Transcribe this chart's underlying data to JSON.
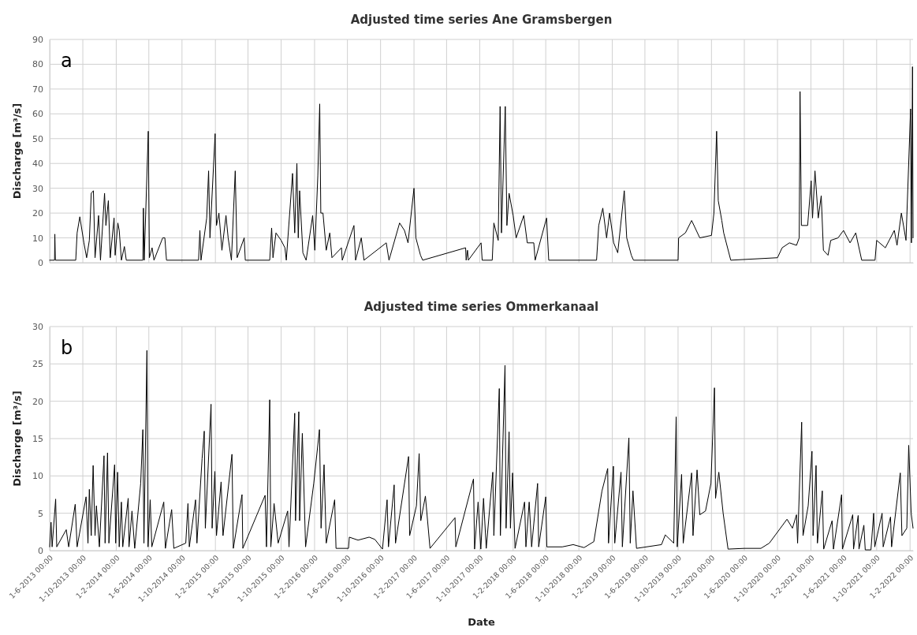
{
  "chart_data": [
    {
      "type": "line",
      "title": "Adjusted time series Ane Gramsbergen",
      "ylabel": "Discharge [m³/s]",
      "annotations": [
        "a"
      ],
      "grid": true,
      "tick_labels": "y",
      "xlim": [
        "2013-06-01",
        "2022-02-12"
      ],
      "ylim": [
        0,
        90
      ],
      "yticks": [
        0,
        10,
        20,
        30,
        40,
        50,
        60,
        70,
        80,
        90
      ],
      "xticks": [
        {
          "value": "2013-06-01",
          "label": null
        },
        {
          "value": "2013-10-01",
          "label": null
        },
        {
          "value": "2014-02-01",
          "label": null
        },
        {
          "value": "2014-06-01",
          "label": null
        },
        {
          "value": "2014-10-01",
          "label": null
        },
        {
          "value": "2015-02-01",
          "label": null
        },
        {
          "value": "2015-06-01",
          "label": null
        },
        {
          "value": "2015-10-01",
          "label": null
        },
        {
          "value": "2016-02-01",
          "label": null
        },
        {
          "value": "2016-06-01",
          "label": null
        },
        {
          "value": "2016-10-01",
          "label": null
        },
        {
          "value": "2017-02-01",
          "label": null
        },
        {
          "value": "2017-06-01",
          "label": null
        },
        {
          "value": "2017-10-01",
          "label": null
        },
        {
          "value": "2018-02-01",
          "label": null
        },
        {
          "value": "2018-06-01",
          "label": null
        },
        {
          "value": "2018-10-01",
          "label": null
        },
        {
          "value": "2019-02-01",
          "label": null
        },
        {
          "value": "2019-06-01",
          "label": null
        },
        {
          "value": "2019-10-01",
          "label": null
        },
        {
          "value": "2020-02-01",
          "label": null
        },
        {
          "value": "2020-06-01",
          "label": null
        },
        {
          "value": "2020-10-01",
          "label": null
        },
        {
          "value": "2021-02-01",
          "label": null
        },
        {
          "value": "2021-06-01",
          "label": null
        },
        {
          "value": "2021-10-01",
          "label": null
        },
        {
          "value": "2022-02-01",
          "label": null
        }
      ],
      "series": [
        {
          "color": "#000000",
          "x": [
            "2013-06-01",
            "2013-06-19",
            "2013-06-20",
            "2013-06-22",
            "2013-09-05",
            "2013-09-10",
            "2013-09-20",
            "2013-10-05",
            "2013-10-15",
            "2013-10-25",
            "2013-11-01",
            "2013-11-09",
            "2013-11-15",
            "2013-11-28",
            "2013-12-05",
            "2013-12-20",
            "2013-12-25",
            "2014-01-03",
            "2014-01-10",
            "2014-01-24",
            "2014-01-28",
            "2014-02-07",
            "2014-02-12",
            "2014-02-20",
            "2014-03-03",
            "2014-03-10",
            "2014-05-10",
            "2014-05-12",
            "2014-05-15",
            "2014-05-30",
            "2014-06-03",
            "2014-06-13",
            "2014-06-20",
            "2014-07-22",
            "2014-07-30",
            "2014-08-05",
            "2014-12-01",
            "2014-12-06",
            "2014-12-10",
            "2014-12-31",
            "2015-01-07",
            "2015-01-12",
            "2015-01-31",
            "2015-02-05",
            "2015-02-14",
            "2015-02-25",
            "2015-03-12",
            "2015-03-20",
            "2015-04-01",
            "2015-04-15",
            "2015-04-22",
            "2015-05-18",
            "2015-05-22",
            "2015-08-20",
            "2015-08-27",
            "2015-09-01",
            "2015-09-12",
            "2015-10-01",
            "2015-10-15",
            "2015-10-20",
            "2015-11-12",
            "2015-11-20",
            "2015-11-28",
            "2015-12-03",
            "2015-12-08",
            "2015-12-20",
            "2016-01-01",
            "2016-01-25",
            "2016-02-02",
            "2016-02-13",
            "2016-02-20",
            "2016-02-24",
            "2016-03-03",
            "2016-03-15",
            "2016-03-28",
            "2016-04-05",
            "2016-05-10",
            "2016-05-13",
            "2016-06-25",
            "2016-07-01",
            "2016-07-22",
            "2016-08-01",
            "2016-10-22",
            "2016-11-01",
            "2016-12-10",
            "2016-12-28",
            "2017-01-10",
            "2017-02-01",
            "2017-02-08",
            "2017-02-25",
            "2017-03-05",
            "2017-08-10",
            "2017-08-12",
            "2017-08-17",
            "2017-08-20",
            "2017-10-06",
            "2017-10-10",
            "2017-11-16",
            "2017-11-22",
            "2017-12-08",
            "2017-12-15",
            "2017-12-20",
            "2018-01-03",
            "2018-01-09",
            "2018-01-17",
            "2018-02-01",
            "2018-02-12",
            "2018-03-12",
            "2018-03-25",
            "2018-04-18",
            "2018-04-23",
            "2018-06-04",
            "2018-06-12",
            "2018-12-05",
            "2018-12-13",
            "2018-12-28",
            "2019-01-11",
            "2019-01-22",
            "2019-02-06",
            "2019-02-21",
            "2019-03-17",
            "2019-03-26",
            "2019-04-12",
            "2019-04-20",
            "2019-10-01",
            "2019-10-03",
            "2019-10-28",
            "2019-11-20",
            "2019-12-20",
            "2020-02-01",
            "2020-02-10",
            "2020-02-20",
            "2020-02-26",
            "2020-03-10",
            "2020-03-17",
            "2020-04-12",
            "2020-10-01",
            "2020-10-18",
            "2020-11-14",
            "2020-12-10",
            "2020-12-20",
            "2020-12-23",
            "2020-12-28",
            "2021-01-20",
            "2021-02-02",
            "2021-02-07",
            "2021-02-16",
            "2021-02-28",
            "2021-03-11",
            "2021-03-19",
            "2021-04-05",
            "2021-04-15",
            "2021-05-12",
            "2021-06-01",
            "2021-06-25",
            "2021-07-16",
            "2021-08-07",
            "2021-09-25",
            "2021-10-01",
            "2021-11-02",
            "2021-12-05",
            "2021-12-15",
            "2021-12-31",
            "2022-01-17",
            "2022-02-03",
            "2022-02-06",
            "2022-02-10",
            "2022-02-12"
          ],
          "values": [
            1,
            1,
            11.5,
            1,
            1,
            12,
            18.5,
            8,
            2,
            9,
            28,
            29,
            2,
            19,
            1,
            28,
            15,
            25,
            2,
            18,
            3,
            16,
            13,
            1,
            6.5,
            1,
            1,
            22,
            1,
            53,
            2,
            6,
            1,
            10,
            10,
            1,
            1,
            13,
            1,
            18,
            37,
            10,
            52,
            15,
            20,
            5,
            19,
            10,
            1,
            37,
            2,
            10,
            1,
            1,
            14,
            2,
            12,
            9,
            6,
            1,
            36,
            12,
            40,
            10,
            29,
            4,
            1,
            19,
            5,
            35,
            64,
            20,
            20,
            5,
            12,
            2,
            6,
            1,
            15,
            1,
            10,
            1,
            8,
            1,
            16,
            13,
            8,
            30,
            10,
            3,
            1,
            6,
            1,
            5,
            1,
            8,
            1,
            1,
            16,
            9,
            63,
            12,
            63,
            15,
            28,
            19,
            10,
            19,
            8,
            8,
            1,
            18,
            1,
            1,
            15,
            22,
            10,
            20,
            8,
            4,
            29,
            10,
            3,
            1,
            1,
            10,
            12,
            17,
            10,
            11,
            20,
            53,
            25,
            17,
            12,
            1,
            2,
            6,
            8,
            7,
            10,
            69,
            15,
            15,
            33,
            18,
            37,
            18,
            27,
            5,
            3,
            9,
            10,
            13,
            8,
            12,
            1,
            1,
            9,
            6,
            13,
            7,
            20,
            9,
            62,
            8,
            79,
            10
          ]
        }
      ]
    },
    {
      "type": "line",
      "title": "Adjusted time series Ommerkanaal",
      "xlabel": "Date",
      "ylabel": "Discharge [m³/s]",
      "annotations": [
        "b"
      ],
      "grid": true,
      "xlim": [
        "2013-06-01",
        "2022-02-12"
      ],
      "ylim": [
        0,
        30
      ],
      "yticks": [
        0,
        5,
        10,
        15,
        20,
        25,
        30
      ],
      "xticks": [
        {
          "value": "2013-06-01",
          "label": "1-6-2013 00:00"
        },
        {
          "value": "2013-10-01",
          "label": "1-10-2013 00:00"
        },
        {
          "value": "2014-02-01",
          "label": "1-2-2014 00:00"
        },
        {
          "value": "2014-06-01",
          "label": "1-6-2014 00:00"
        },
        {
          "value": "2014-10-01",
          "label": "1-10-2014 00:00"
        },
        {
          "value": "2015-02-01",
          "label": "1-2-2015 00:00"
        },
        {
          "value": "2015-06-01",
          "label": "1-6-2015 00:00"
        },
        {
          "value": "2015-10-01",
          "label": "1-10-2015 00:00"
        },
        {
          "value": "2016-02-01",
          "label": "1-2-2016 00:00"
        },
        {
          "value": "2016-06-01",
          "label": "1-6-2016 00:00"
        },
        {
          "value": "2016-10-01",
          "label": "1-10-2016 00:00"
        },
        {
          "value": "2017-02-01",
          "label": "1-2-2017 00:00"
        },
        {
          "value": "2017-06-01",
          "label": "1-6-2017 00:00"
        },
        {
          "value": "2017-10-01",
          "label": "1-10-2017 00:00"
        },
        {
          "value": "2018-02-01",
          "label": "1-2-2018 00:00"
        },
        {
          "value": "2018-06-01",
          "label": "1-6-2018 00:00"
        },
        {
          "value": "2018-10-01",
          "label": "1-10-2018 00:00"
        },
        {
          "value": "2019-02-01",
          "label": "1-2-2019 00:00"
        },
        {
          "value": "2019-06-01",
          "label": "1-6-2019 00:00"
        },
        {
          "value": "2019-10-01",
          "label": "1-10-2019 00:00"
        },
        {
          "value": "2020-02-01",
          "label": "1-2-2020 00:00"
        },
        {
          "value": "2020-06-01",
          "label": "1-6-2020 00:00"
        },
        {
          "value": "2020-10-01",
          "label": "1-10-2020 00:00"
        },
        {
          "value": "2021-02-01",
          "label": "1-2-2021 00:00"
        },
        {
          "value": "2021-06-01",
          "label": "1-6-2021 00:00"
        },
        {
          "value": "2021-10-01",
          "label": "1-10-2021 00:00"
        },
        {
          "value": "2022-02-01",
          "label": "1-2-2022 00:00"
        }
      ],
      "series": [
        {
          "color": "#000000",
          "x": [
            "2013-06-01",
            "2013-06-06",
            "2013-06-10",
            "2013-06-23",
            "2013-06-27",
            "2013-08-01",
            "2013-08-10",
            "2013-09-03",
            "2013-09-10",
            "2013-10-13",
            "2013-10-20",
            "2013-10-25",
            "2013-11-01",
            "2013-11-08",
            "2013-11-15",
            "2013-11-20",
            "2013-12-01",
            "2013-12-18",
            "2013-12-22",
            "2013-12-31",
            "2014-01-05",
            "2014-01-26",
            "2014-01-30",
            "2014-02-06",
            "2014-02-12",
            "2014-02-20",
            "2014-02-25",
            "2014-03-17",
            "2014-03-20",
            "2014-03-31",
            "2014-04-10",
            "2014-05-02",
            "2014-05-10",
            "2014-05-14",
            "2014-05-25",
            "2014-05-29",
            "2014-06-06",
            "2014-06-12",
            "2014-07-26",
            "2014-08-01",
            "2014-08-24",
            "2014-09-01",
            "2014-10-15",
            "2014-10-23",
            "2014-10-28",
            "2014-11-20",
            "2014-11-25",
            "2014-12-14",
            "2014-12-22",
            "2014-12-26",
            "2015-01-16",
            "2015-01-20",
            "2015-01-30",
            "2015-02-05",
            "2015-02-22",
            "2015-03-01",
            "2015-04-03",
            "2015-04-08",
            "2015-05-10",
            "2015-05-13",
            "2015-08-03",
            "2015-08-08",
            "2015-08-20",
            "2015-08-24",
            "2015-09-05",
            "2015-09-20",
            "2015-10-25",
            "2015-10-30",
            "2015-11-20",
            "2015-11-23",
            "2015-12-05",
            "2015-12-08",
            "2015-12-18",
            "2015-12-30",
            "2016-01-29",
            "2016-02-19",
            "2016-02-25",
            "2016-03-07",
            "2016-03-15",
            "2016-04-15",
            "2016-04-20",
            "2016-06-05",
            "2016-06-08",
            "2016-07-10",
            "2016-08-20",
            "2016-09-10",
            "2016-10-08",
            "2016-10-25",
            "2016-10-30",
            "2016-11-20",
            "2016-11-25",
            "2017-01-12",
            "2017-01-16",
            "2017-02-10",
            "2017-02-20",
            "2017-02-26",
            "2017-03-15",
            "2017-04-01",
            "2017-07-02",
            "2017-07-05",
            "2017-09-08",
            "2017-09-12",
            "2017-09-25",
            "2017-10-05",
            "2017-10-15",
            "2017-10-25",
            "2017-11-18",
            "2017-11-22",
            "2017-12-12",
            "2017-12-16",
            "2018-01-02",
            "2018-01-06",
            "2018-01-17",
            "2018-01-22",
            "2018-01-30",
            "2018-02-08",
            "2018-03-15",
            "2018-03-20",
            "2018-04-01",
            "2018-04-10",
            "2018-05-02",
            "2018-05-06",
            "2018-06-01",
            "2018-06-05",
            "2018-08-01",
            "2018-09-10",
            "2018-10-20",
            "2018-11-25",
            "2018-12-25",
            "2019-01-15",
            "2019-01-18",
            "2019-02-05",
            "2019-02-10",
            "2019-03-05",
            "2019-03-10",
            "2019-04-03",
            "2019-04-08",
            "2019-04-18",
            "2019-05-01",
            "2019-08-01",
            "2019-08-15",
            "2019-09-15",
            "2019-09-24",
            "2019-09-28",
            "2019-10-14",
            "2019-10-20",
            "2019-11-20",
            "2019-11-25",
            "2019-12-10",
            "2019-12-20",
            "2020-01-10",
            "2020-01-30",
            "2020-02-12",
            "2020-02-16",
            "2020-02-28",
            "2020-03-15",
            "2020-04-02",
            "2020-06-01",
            "2020-08-01",
            "2020-09-01",
            "2020-11-05",
            "2020-11-25",
            "2020-12-10",
            "2020-12-14",
            "2020-12-29",
            "2021-01-03",
            "2021-01-22",
            "2021-02-05",
            "2021-02-09",
            "2021-02-20",
            "2021-02-25",
            "2021-03-15",
            "2021-03-20",
            "2021-04-20",
            "2021-04-25",
            "2021-05-25",
            "2021-05-28",
            "2021-07-05",
            "2021-07-08",
            "2021-07-25",
            "2021-07-28",
            "2021-08-15",
            "2021-08-20",
            "2021-09-10",
            "2021-09-20",
            "2021-09-24",
            "2021-10-21",
            "2021-10-25",
            "2021-11-21",
            "2021-11-25",
            "2021-12-27",
            "2022-01-02",
            "2022-01-20",
            "2022-01-27",
            "2022-02-05",
            "2022-02-12"
          ],
          "values": [
            0.5,
            3.8,
            0.5,
            6.9,
            0.5,
            2.8,
            0.5,
            6.2,
            0.5,
            7.2,
            1,
            8.2,
            2,
            11.4,
            2,
            6,
            0.5,
            12.7,
            1,
            13.1,
            1,
            11.5,
            1,
            10.5,
            0.5,
            6.5,
            0.5,
            7,
            0.5,
            5.3,
            0.3,
            9,
            16.2,
            1,
            26.8,
            0.5,
            6.8,
            0.5,
            6.5,
            0.3,
            5.5,
            0.3,
            1,
            6.3,
            0.5,
            6.8,
            1,
            12.3,
            16,
            3,
            19.6,
            3,
            10.6,
            2,
            9.2,
            2,
            12.9,
            0.3,
            7.5,
            0.3,
            7.4,
            0.5,
            20.2,
            0.5,
            6.3,
            1,
            5.3,
            0.5,
            18.4,
            4,
            18.6,
            4,
            15.7,
            0.5,
            9,
            16.2,
            3,
            11.5,
            1,
            6.8,
            0.3,
            0.3,
            1.8,
            1.4,
            1.8,
            1.5,
            0.2,
            6.8,
            0.5,
            8.8,
            1,
            12.6,
            2,
            6,
            13,
            4,
            7.3,
            0.3,
            4.4,
            0.5,
            9.6,
            0.2,
            6.5,
            0.2,
            7,
            0.3,
            10.5,
            2,
            21.7,
            2,
            24.8,
            3,
            15.9,
            3,
            10.4,
            0.3,
            6.5,
            0.5,
            6.5,
            0.5,
            9,
            0.5,
            7.2,
            0.5,
            0.5,
            0.8,
            0.4,
            1.2,
            8,
            11,
            1,
            11.3,
            1,
            10.5,
            0.5,
            15.1,
            1,
            8,
            0.3,
            0.8,
            2.1,
            1,
            17.9,
            0.5,
            10.2,
            1,
            10.4,
            2,
            10.8,
            4.8,
            5.3,
            9,
            21.8,
            7,
            10.5,
            5,
            0.2,
            0.3,
            0.3,
            1,
            4.2,
            3,
            4.8,
            1,
            17.2,
            2,
            6,
            13.3,
            2,
            11.4,
            1,
            8,
            0.2,
            4,
            0.2,
            7.5,
            0.2,
            4.8,
            0.2,
            4.7,
            0.2,
            3.4,
            0.1,
            0.1,
            5,
            0.5,
            5,
            0.5,
            4.5,
            0.5,
            10.4,
            2,
            3,
            14.1,
            5,
            3
          ]
        }
      ]
    }
  ]
}
